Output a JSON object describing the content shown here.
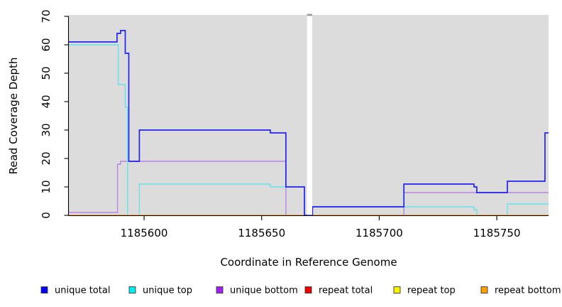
{
  "chart_data": {
    "type": "line",
    "subtype": "step-after-coverage",
    "title": "",
    "xlabel": "Coordinate in Reference Genome",
    "ylabel": "Read Coverage Depth",
    "xlim": [
      1185568,
      1185772
    ],
    "ylim": [
      0,
      70
    ],
    "x_tick_values": [
      1185600,
      1185650,
      1185700,
      1185750
    ],
    "x_tick_labels": [
      "1185600",
      "1185650",
      "1185700",
      "1185750"
    ],
    "y_tick_values": [
      0,
      10,
      20,
      30,
      40,
      50,
      60,
      70
    ],
    "y_tick_labels": [
      "0",
      "10",
      "20",
      "30",
      "40",
      "50",
      "60",
      "70"
    ],
    "grid": false,
    "panel_background": "#dcdcdc",
    "gap_dash_color": "#9a9a9a",
    "axis_color": "#000000",
    "legend_position": "bottom",
    "no_data_gap": {
      "x_start": 1185669.3,
      "x_end": 1185671.5
    },
    "series": [
      {
        "name": "unique total",
        "line_color": "#2323ec",
        "legend_color": "#0000ee",
        "draw_order": 6,
        "steps": [
          [
            1185568,
            61
          ],
          [
            1185588.5,
            64
          ],
          [
            1185590,
            65
          ],
          [
            1185592,
            57
          ],
          [
            1185593.5,
            19
          ],
          [
            1185598,
            30
          ],
          [
            1185653.7,
            29
          ],
          [
            1185660.3,
            10
          ],
          [
            1185668.2,
            0
          ],
          [
            1185671.6,
            3
          ],
          [
            1185710.5,
            11
          ],
          [
            1185740.3,
            10
          ],
          [
            1185741.5,
            8
          ],
          [
            1185754.5,
            12
          ],
          [
            1185770.5,
            29
          ],
          [
            1185772,
            29
          ]
        ]
      },
      {
        "name": "unique top",
        "line_color": "#67e2e9",
        "legend_color": "#00eeee",
        "draw_order": 4,
        "steps": [
          [
            1185568,
            60
          ],
          [
            1185589,
            46
          ],
          [
            1185592,
            38
          ],
          [
            1185593,
            0
          ],
          [
            1185598,
            11
          ],
          [
            1185653.7,
            10
          ],
          [
            1185668.2,
            0
          ],
          [
            1185671.6,
            3
          ],
          [
            1185740.3,
            2
          ],
          [
            1185741.5,
            0
          ],
          [
            1185754.5,
            4
          ],
          [
            1185772,
            4
          ]
        ]
      },
      {
        "name": "unique bottom",
        "line_color": "#b884e4",
        "legend_color": "#a020f0",
        "draw_order": 3,
        "steps": [
          [
            1185568,
            1
          ],
          [
            1185588.7,
            18
          ],
          [
            1185590,
            19
          ],
          [
            1185660.3,
            0
          ],
          [
            1185710.5,
            8
          ],
          [
            1185772,
            8
          ]
        ]
      },
      {
        "name": "repeat total",
        "line_color": "#dd2222",
        "legend_color": "#ee0000",
        "draw_order": 1,
        "steps": [
          [
            1185568,
            0
          ],
          [
            1185772,
            0
          ]
        ]
      },
      {
        "name": "repeat top",
        "line_color": "#f0e52a",
        "legend_color": "#f5f500",
        "draw_order": 2,
        "steps": [
          [
            1185568,
            0
          ],
          [
            1185772,
            0
          ]
        ]
      },
      {
        "name": "repeat bottom",
        "line_color": "#ff9f1c",
        "legend_color": "#ffa200",
        "draw_order": 5,
        "steps": [
          [
            1185568,
            0
          ],
          [
            1185772,
            0
          ]
        ]
      }
    ]
  }
}
